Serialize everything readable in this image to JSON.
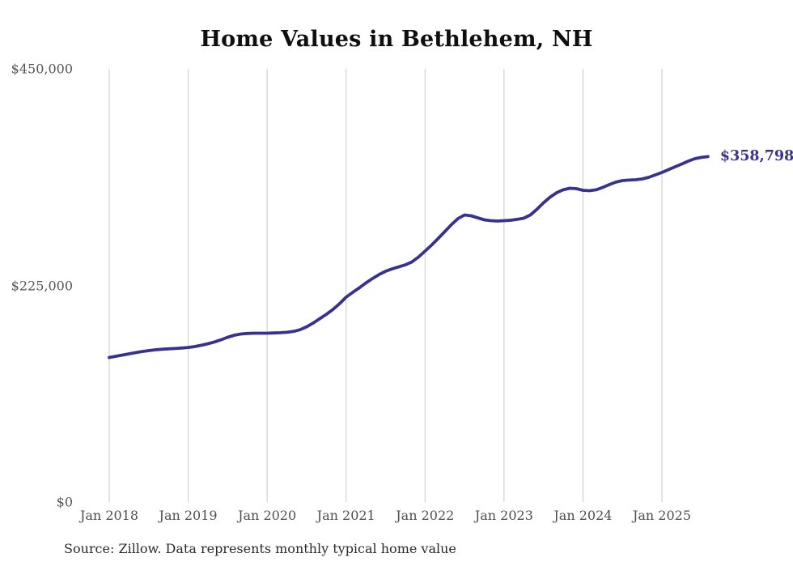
{
  "chart": {
    "title": "Home Values in Bethlehem, NH",
    "source": "Source: Zillow. Data represents monthly typical home value",
    "colors": {
      "line": "#38328f",
      "grid": "#c9c9cf",
      "axis_text": "#545454",
      "title_text": "#0f0f0f",
      "source_text": "#2b2b2b",
      "background": "#ffffff"
    }
  },
  "chart_data": {
    "type": "line",
    "title": "Home Values in Bethlehem, NH",
    "xlabel": "",
    "ylabel": "",
    "ylim": [
      0,
      450000
    ],
    "y_ticks": [
      0,
      225000,
      450000
    ],
    "y_tick_labels": [
      "$0",
      "$225,000",
      "$450,000"
    ],
    "x_tick_labels": [
      "Jan 2018",
      "Jan 2019",
      "Jan 2020",
      "Jan 2021",
      "Jan 2022",
      "Jan 2023",
      "Jan 2024",
      "Jan 2025"
    ],
    "grid": "vertical-only",
    "legend_position": "none",
    "end_value": 358798,
    "end_value_label": "$358,798",
    "x_start_month": "2018-01",
    "x_end_month": "2025-08",
    "x_cadence": "monthly",
    "series": [
      {
        "name": "Typical home value",
        "values": [
          150100,
          151400,
          152700,
          153900,
          155200,
          156400,
          157300,
          158100,
          158700,
          159100,
          159500,
          160000,
          160600,
          161500,
          162800,
          164400,
          166300,
          168600,
          171200,
          173300,
          174500,
          175100,
          175400,
          175400,
          175400,
          175600,
          175900,
          176300,
          177200,
          179000,
          182000,
          186000,
          190500,
          195000,
          200000,
          206000,
          212800,
          217800,
          222500,
          227500,
          232100,
          236300,
          239700,
          242200,
          244300,
          246400,
          249400,
          254400,
          260700,
          267000,
          273800,
          280900,
          288100,
          294400,
          298200,
          297300,
          295200,
          293100,
          292300,
          291900,
          292300,
          292700,
          293600,
          294800,
          298200,
          304100,
          310800,
          316700,
          321300,
          324300,
          325900,
          325500,
          323800,
          323400,
          324300,
          326800,
          329700,
          332300,
          333900,
          334400,
          334800,
          335600,
          337300,
          339800,
          342300,
          345300,
          348200,
          351100,
          354100,
          356600,
          358000,
          358798
        ]
      }
    ]
  }
}
